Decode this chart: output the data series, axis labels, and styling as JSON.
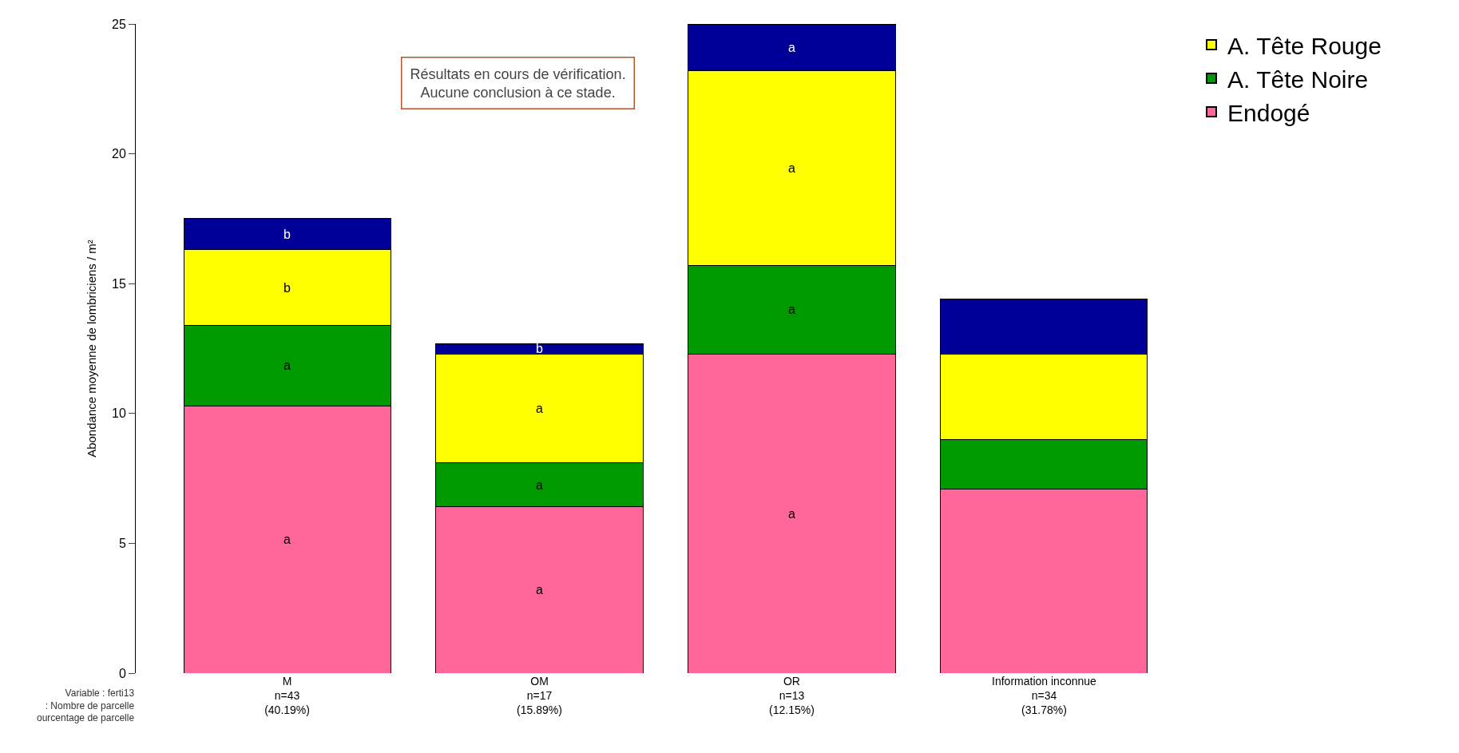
{
  "chart_data": {
    "type": "bar",
    "stacked": true,
    "ylabel": "Abondance moyenne de lombriciens / m²",
    "categories": [
      "M\nn=43\n(40.19%)",
      "OM\nn=17\n(15.89%)",
      "OR\nn=13\n(12.15%)",
      "Information inconnue\nn=34\n(31.78%)"
    ],
    "series": [
      {
        "name": "Endogé",
        "color": "#ff6699",
        "values": [
          10.3,
          6.4,
          12.3,
          7.1
        ],
        "value_labels": [
          "a",
          "a",
          "a",
          null
        ]
      },
      {
        "name": "A. Tête Noire",
        "color": "#009900",
        "values": [
          3.1,
          1.7,
          3.4,
          1.9
        ],
        "value_labels": [
          "a",
          "a",
          "a",
          null
        ]
      },
      {
        "name": "A. Tête Rouge",
        "color": "#ffff00",
        "values": [
          2.9,
          4.2,
          7.5,
          3.3
        ],
        "value_labels": [
          "b",
          "a",
          "a",
          null
        ]
      },
      {
        "color": "#000099",
        "values": [
          1.2,
          0.4,
          1.8,
          2.1
        ],
        "value_labels": [
          "b",
          "b",
          "a",
          null
        ]
      }
    ],
    "ylim": [
      0,
      25
    ],
    "yticks": [
      0,
      5,
      10,
      15,
      20,
      25
    ],
    "legend": "top right",
    "annotations": [
      "Résultats en cours de vérification.\nAucune conclusion à ce stade.",
      "Variable : ferti13\n: Nombre de parcelle\nourcentage de parcelle"
    ]
  }
}
